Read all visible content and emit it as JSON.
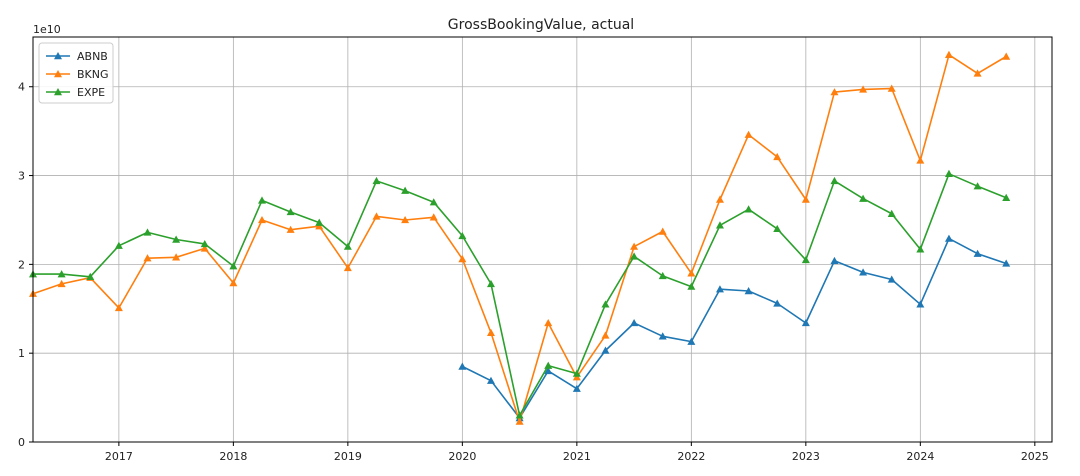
{
  "chart_data": {
    "type": "line",
    "title": "GrossBookingValue, actual",
    "scale_label": "1e10",
    "xlabel": "",
    "ylabel": "",
    "xlim": [
      2016.25,
      2025.15
    ],
    "ylim": [
      0,
      45600000000
    ],
    "x_ticks": [
      2017,
      2018,
      2019,
      2020,
      2021,
      2022,
      2023,
      2024,
      2025
    ],
    "x_tick_labels": [
      "2017",
      "2018",
      "2019",
      "2020",
      "2021",
      "2022",
      "2023",
      "2024",
      "2025"
    ],
    "y_ticks": [
      0,
      10000000000,
      20000000000,
      30000000000,
      40000000000
    ],
    "y_tick_labels": [
      "0",
      "1",
      "2",
      "3",
      "4"
    ],
    "grid": true,
    "legend_position": "top-left",
    "series": [
      {
        "name": "ABNB",
        "color": "#1f77b4",
        "marker": "triangle-up",
        "x": [
          2020.0,
          2020.25,
          2020.5,
          2020.75,
          2021.0,
          2021.25,
          2021.5,
          2021.75,
          2022.0,
          2022.25,
          2022.5,
          2022.75,
          2023.0,
          2023.25,
          2023.5,
          2023.75,
          2024.0,
          2024.25,
          2024.5,
          2024.75
        ],
        "values": [
          8500000000,
          6900000000,
          2700000000,
          8000000000,
          6000000000,
          10300000000,
          13400000000,
          11900000000,
          11300000000,
          17200000000,
          17000000000,
          15600000000,
          13400000000,
          20400000000,
          19100000000,
          18300000000,
          15500000000,
          22900000000,
          21200000000,
          20100000000
        ]
      },
      {
        "name": "BKNG",
        "color": "#ff7f0e",
        "marker": "triangle-up",
        "x": [
          2016.25,
          2016.5,
          2016.75,
          2017.0,
          2017.25,
          2017.5,
          2017.75,
          2018.0,
          2018.25,
          2018.5,
          2018.75,
          2019.0,
          2019.25,
          2019.5,
          2019.75,
          2020.0,
          2020.25,
          2020.5,
          2020.75,
          2021.0,
          2021.25,
          2021.5,
          2021.75,
          2022.0,
          2022.25,
          2022.5,
          2022.75,
          2023.0,
          2023.25,
          2023.5,
          2023.75,
          2024.0,
          2024.25,
          2024.5,
          2024.75
        ],
        "values": [
          16700000000,
          17800000000,
          18500000000,
          15100000000,
          20700000000,
          20800000000,
          21800000000,
          17900000000,
          25000000000,
          23900000000,
          24300000000,
          19600000000,
          25400000000,
          25000000000,
          25300000000,
          20600000000,
          12300000000,
          2300000000,
          13400000000,
          7300000000,
          12000000000,
          22000000000,
          23700000000,
          19000000000,
          27300000000,
          34600000000,
          32100000000,
          27300000000,
          39400000000,
          39700000000,
          39800000000,
          31700000000,
          43600000000,
          41500000000,
          43400000000
        ]
      },
      {
        "name": "EXPE",
        "color": "#2ca02c",
        "marker": "triangle-up",
        "x": [
          2016.25,
          2016.5,
          2016.75,
          2017.0,
          2017.25,
          2017.5,
          2017.75,
          2018.0,
          2018.25,
          2018.5,
          2018.75,
          2019.0,
          2019.25,
          2019.5,
          2019.75,
          2020.0,
          2020.25,
          2020.5,
          2020.75,
          2021.0,
          2021.25,
          2021.5,
          2021.75,
          2022.0,
          2022.25,
          2022.5,
          2022.75,
          2023.0,
          2023.25,
          2023.5,
          2023.75,
          2024.0,
          2024.25,
          2024.5,
          2024.75
        ],
        "values": [
          18900000000,
          18900000000,
          18600000000,
          22100000000,
          23600000000,
          22800000000,
          22300000000,
          19800000000,
          27200000000,
          25900000000,
          24700000000,
          22000000000,
          29400000000,
          28300000000,
          27000000000,
          23200000000,
          17800000000,
          3000000000,
          8600000000,
          7700000000,
          15500000000,
          20900000000,
          18700000000,
          17500000000,
          24400000000,
          26200000000,
          24000000000,
          20500000000,
          29400000000,
          27400000000,
          25700000000,
          21700000000,
          30200000000,
          28800000000,
          27500000000
        ]
      }
    ]
  }
}
